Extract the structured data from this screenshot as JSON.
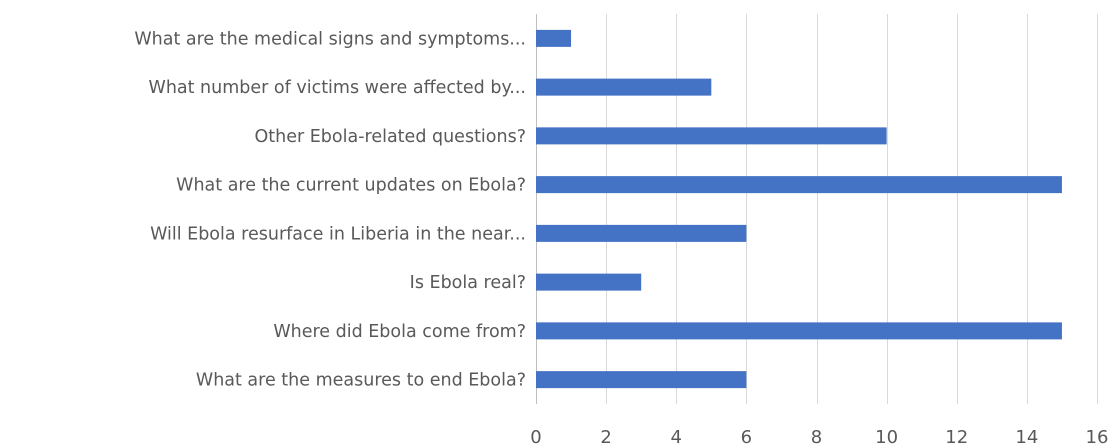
{
  "chart_data": {
    "type": "bar",
    "orientation": "horizontal",
    "categories": [
      "What are the medical signs and symptoms...",
      "What number of victims were affected by...",
      "Other Ebola-related questions?",
      "What are the current updates on Ebola?",
      "Will Ebola resurface in Liberia in the near...",
      "Is Ebola real?",
      "Where did Ebola come from?",
      "What are the measures to end Ebola?"
    ],
    "values": [
      1,
      5,
      10,
      15,
      6,
      3,
      15,
      6
    ],
    "xlim": [
      0,
      16
    ],
    "xticks": [
      0,
      2,
      4,
      6,
      8,
      10,
      12,
      14,
      16
    ],
    "grid": true,
    "bar_color": "#4472c4",
    "title": "",
    "xlabel": "",
    "ylabel": ""
  }
}
